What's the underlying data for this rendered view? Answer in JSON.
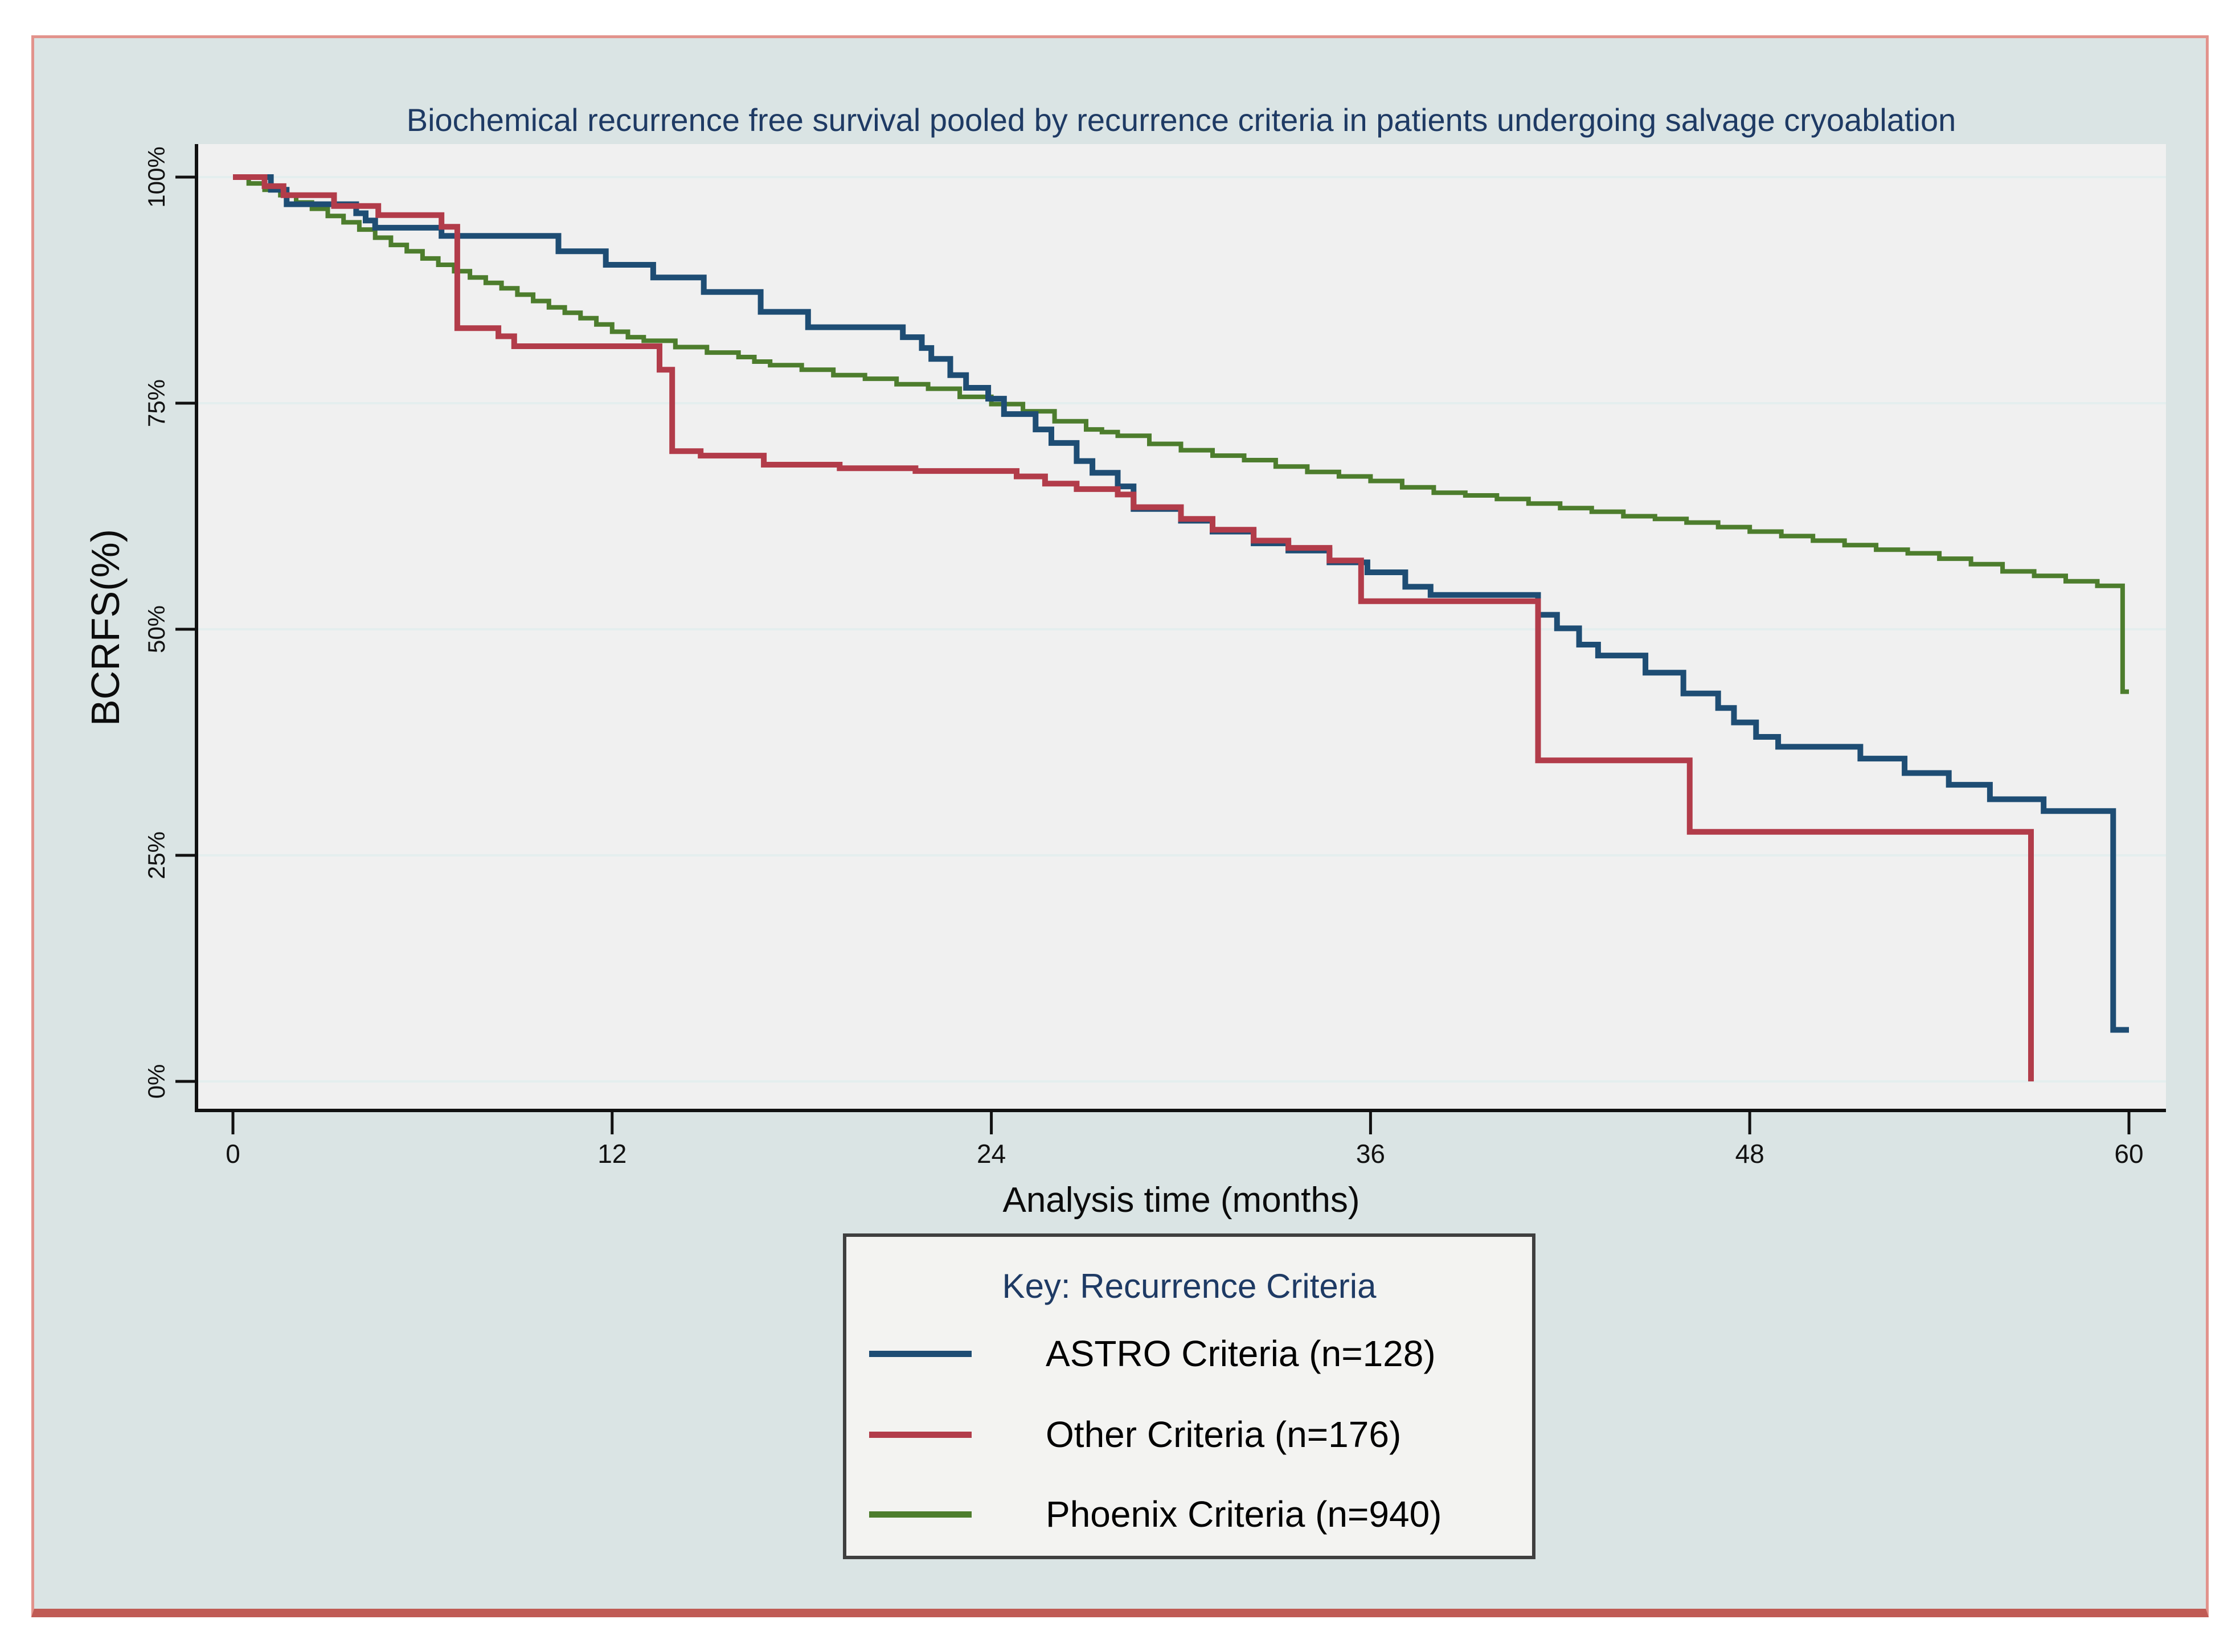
{
  "figure": {
    "background_color": "#dae4e4",
    "border_color": "#e2938c",
    "bottom_bar_color": "#c05b55",
    "plot_background_color": "#f0f0f0",
    "gridline_color": "#e4eeee",
    "axis_color": "#111111",
    "title_color": "#1e3a64"
  },
  "chart_data": {
    "type": "line",
    "subtype": "kaplan-meier-step-survival",
    "title": "Biochemical recurrence free survival pooled by recurrence criteria in patients undergoing salvage cryoablation",
    "xlabel": "Analysis time (months)",
    "ylabel": "BCRFS(%)",
    "xlim": [
      0,
      60
    ],
    "ylim": [
      0,
      100
    ],
    "x_ticks": [
      0,
      12,
      24,
      36,
      48,
      60
    ],
    "y_tick_values": [
      0,
      25,
      50,
      75,
      100
    ],
    "y_tick_labels": [
      "0%",
      "25%",
      "50%",
      "75%",
      "100%"
    ],
    "grid": "horizontal",
    "legend": {
      "title": "Key: Recurrence Criteria",
      "position": "below-chart"
    },
    "series": [
      {
        "name": "ASTRO Criteria (n=128)",
        "n": 128,
        "color": "#1e4d74",
        "end": 60,
        "points": [
          [
            0,
            100
          ],
          [
            1.2,
            98.6
          ],
          [
            1.7,
            97
          ],
          [
            3.9,
            96
          ],
          [
            4.2,
            95.2
          ],
          [
            4.5,
            94.4
          ],
          [
            6.6,
            93.5
          ],
          [
            10.3,
            91.8
          ],
          [
            11.8,
            90.3
          ],
          [
            13.3,
            88.9
          ],
          [
            14.9,
            87.3
          ],
          [
            16.7,
            85.1
          ],
          [
            18.2,
            83.4
          ],
          [
            21.2,
            82.3
          ],
          [
            21.8,
            81.1
          ],
          [
            22.1,
            79.9
          ],
          [
            22.7,
            78.1
          ],
          [
            23.2,
            76.7
          ],
          [
            23.9,
            75.5
          ],
          [
            24.4,
            73.8
          ],
          [
            25.4,
            72.1
          ],
          [
            25.9,
            70.6
          ],
          [
            26.7,
            68.6
          ],
          [
            27.2,
            67.3
          ],
          [
            28,
            65.8
          ],
          [
            28.5,
            63.3
          ],
          [
            30,
            62
          ],
          [
            31,
            60.8
          ],
          [
            32.3,
            59.5
          ],
          [
            33.4,
            58.7
          ],
          [
            34.7,
            57.4
          ],
          [
            35.9,
            56.3
          ],
          [
            37.1,
            54.7
          ],
          [
            37.9,
            53.8
          ],
          [
            41.3,
            51.6
          ],
          [
            41.9,
            50.1
          ],
          [
            42.6,
            48.3
          ],
          [
            43.2,
            47.1
          ],
          [
            44.7,
            45.2
          ],
          [
            45.9,
            42.9
          ],
          [
            47,
            41.3
          ],
          [
            47.5,
            39.7
          ],
          [
            48.2,
            38.1
          ],
          [
            48.9,
            37
          ],
          [
            51.5,
            35.7
          ],
          [
            52.9,
            34.1
          ],
          [
            54.3,
            32.8
          ],
          [
            55.6,
            31.2
          ],
          [
            57.3,
            29.9
          ],
          [
            59.5,
            5.7
          ]
        ]
      },
      {
        "name": "Other Criteria (n=176)",
        "n": 176,
        "color": "#b23c4a",
        "end": null,
        "points": [
          [
            0,
            100
          ],
          [
            1,
            99
          ],
          [
            1.6,
            98
          ],
          [
            3.2,
            96.8
          ],
          [
            4.6,
            95.8
          ],
          [
            6.6,
            94.5
          ],
          [
            7.1,
            83.3
          ],
          [
            8.4,
            82.4
          ],
          [
            8.9,
            81.3
          ],
          [
            13.5,
            78.7
          ],
          [
            13.9,
            69.7
          ],
          [
            14.8,
            69.2
          ],
          [
            16.8,
            68.2
          ],
          [
            19.2,
            67.8
          ],
          [
            21.6,
            67.5
          ],
          [
            24.8,
            66.9
          ],
          [
            25.7,
            66.1
          ],
          [
            26.7,
            65.5
          ],
          [
            28,
            64.9
          ],
          [
            28.5,
            63.5
          ],
          [
            30,
            62.2
          ],
          [
            31,
            61
          ],
          [
            32.3,
            59.8
          ],
          [
            33.4,
            59
          ],
          [
            34.7,
            57.6
          ],
          [
            35.7,
            53.1
          ],
          [
            41.3,
            35.5
          ],
          [
            46.1,
            27.6
          ],
          [
            56.9,
            0
          ]
        ]
      },
      {
        "name": "Phoenix Criteria (n=940)",
        "n": 940,
        "color": "#4d7d2d",
        "end": 60,
        "points": [
          [
            0,
            100
          ],
          [
            0.5,
            99.3
          ],
          [
            1,
            98.6
          ],
          [
            1.5,
            98
          ],
          [
            2,
            97.2
          ],
          [
            2.5,
            96.5
          ],
          [
            3,
            95.7
          ],
          [
            3.5,
            95
          ],
          [
            4,
            94.2
          ],
          [
            4.5,
            93.3
          ],
          [
            5,
            92.5
          ],
          [
            5.5,
            91.8
          ],
          [
            6,
            91
          ],
          [
            6.5,
            90.3
          ],
          [
            7,
            89.6
          ],
          [
            7.5,
            88.9
          ],
          [
            8,
            88.3
          ],
          [
            8.5,
            87.7
          ],
          [
            9,
            87
          ],
          [
            9.5,
            86.3
          ],
          [
            10,
            85.6
          ],
          [
            10.5,
            85
          ],
          [
            11,
            84.4
          ],
          [
            11.5,
            83.7
          ],
          [
            12,
            82.9
          ],
          [
            12.5,
            82.3
          ],
          [
            13,
            81.9
          ],
          [
            14,
            81.2
          ],
          [
            15,
            80.6
          ],
          [
            16,
            80.1
          ],
          [
            16.5,
            79.6
          ],
          [
            17,
            79.2
          ],
          [
            18,
            78.7
          ],
          [
            19,
            78.1
          ],
          [
            20,
            77.7
          ],
          [
            21,
            77.1
          ],
          [
            22,
            76.6
          ],
          [
            23,
            75.7
          ],
          [
            24,
            74.9
          ],
          [
            25,
            74.1
          ],
          [
            26,
            73
          ],
          [
            27,
            72.1
          ],
          [
            27.5,
            71.8
          ],
          [
            28,
            71.4
          ],
          [
            29,
            70.5
          ],
          [
            30,
            69.8
          ],
          [
            31,
            69.2
          ],
          [
            32,
            68.7
          ],
          [
            33,
            68
          ],
          [
            34,
            67.4
          ],
          [
            35,
            66.9
          ],
          [
            36,
            66.4
          ],
          [
            37,
            65.7
          ],
          [
            38,
            65.1
          ],
          [
            39,
            64.8
          ],
          [
            40,
            64.4
          ],
          [
            41,
            63.9
          ],
          [
            42,
            63.4
          ],
          [
            43,
            63
          ],
          [
            44,
            62.5
          ],
          [
            45,
            62.2
          ],
          [
            46,
            61.8
          ],
          [
            47,
            61.3
          ],
          [
            48,
            60.8
          ],
          [
            49,
            60.3
          ],
          [
            50,
            59.8
          ],
          [
            51,
            59.3
          ],
          [
            52,
            58.8
          ],
          [
            53,
            58.4
          ],
          [
            54,
            57.8
          ],
          [
            55,
            57.2
          ],
          [
            56,
            56.4
          ],
          [
            57,
            55.9
          ],
          [
            58,
            55.3
          ],
          [
            59,
            54.8
          ],
          [
            59.8,
            43.1
          ]
        ]
      }
    ]
  }
}
